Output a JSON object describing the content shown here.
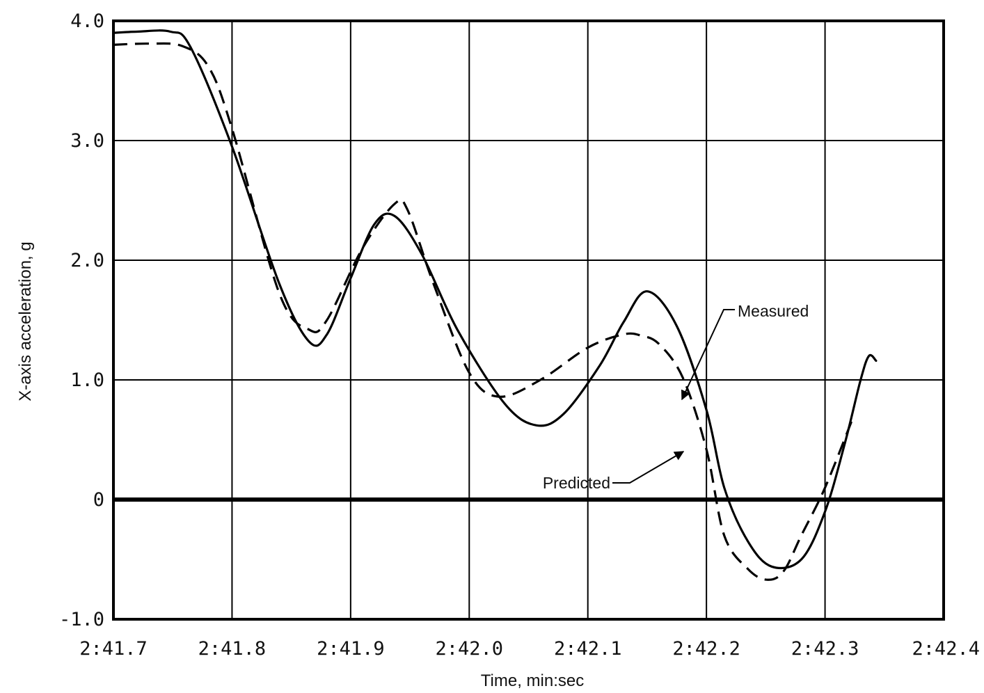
{
  "chart_data": {
    "type": "line",
    "xlabel": "Time, min:sec",
    "ylabel": "X-axis acceleration, g",
    "xlim": [
      0,
      0.7
    ],
    "ylim": [
      -1.0,
      4.0
    ],
    "x_tick_values": [
      0,
      0.1,
      0.2,
      0.3,
      0.4,
      0.5,
      0.6,
      0.7
    ],
    "x_tick_labels": [
      "2:41.7",
      "2:41.8",
      "2:41.9",
      "2:42.0",
      "2:42.1",
      "2:42.2",
      "2:42.3",
      "2:42.4"
    ],
    "y_tick_values": [
      4.0,
      3.0,
      2.0,
      1.0,
      0,
      -1.0
    ],
    "y_tick_labels": [
      "4.0",
      "3.0",
      "2.0",
      "1.0",
      "0",
      "-1.0"
    ],
    "x_unit_note": "x values are seconds after 2:41.7",
    "grid": true,
    "series": [
      {
        "name": "Measured",
        "style": "solid",
        "x": [
          0,
          0.02,
          0.048,
          0.065,
          0.1,
          0.14,
          0.165,
          0.18,
          0.2,
          0.22,
          0.237,
          0.26,
          0.29,
          0.33,
          0.357,
          0.38,
          0.41,
          0.43,
          0.45,
          0.475,
          0.5,
          0.515,
          0.535,
          0.555,
          0.58,
          0.6,
          0.617,
          0.63,
          0.637,
          0.643
        ],
        "y": [
          3.9,
          3.91,
          3.91,
          3.78,
          2.95,
          1.8,
          1.32,
          1.38,
          1.85,
          2.3,
          2.37,
          2.05,
          1.42,
          0.8,
          0.62,
          0.72,
          1.12,
          1.48,
          1.74,
          1.45,
          0.75,
          0.1,
          -0.35,
          -0.56,
          -0.5,
          -0.1,
          0.48,
          1.0,
          1.2,
          1.16
        ]
      },
      {
        "name": "Predicted",
        "style": "dashed",
        "x": [
          0,
          0.03,
          0.058,
          0.08,
          0.1,
          0.14,
          0.165,
          0.18,
          0.21,
          0.237,
          0.248,
          0.27,
          0.3,
          0.325,
          0.36,
          0.4,
          0.43,
          0.445,
          0.46,
          0.48,
          0.5,
          0.515,
          0.535,
          0.551,
          0.565,
          0.58,
          0.6,
          0.623
        ],
        "y": [
          3.8,
          3.81,
          3.79,
          3.62,
          3.1,
          1.72,
          1.42,
          1.5,
          2.1,
          2.47,
          2.42,
          1.8,
          1.06,
          0.86,
          1.0,
          1.27,
          1.38,
          1.37,
          1.3,
          1.02,
          0.42,
          -0.3,
          -0.58,
          -0.67,
          -0.6,
          -0.3,
          0.1,
          0.67
        ]
      }
    ],
    "annotations": [
      {
        "text": "Measured",
        "points_to": "Measured"
      },
      {
        "text": "Predicted",
        "points_to": "Predicted"
      }
    ]
  }
}
